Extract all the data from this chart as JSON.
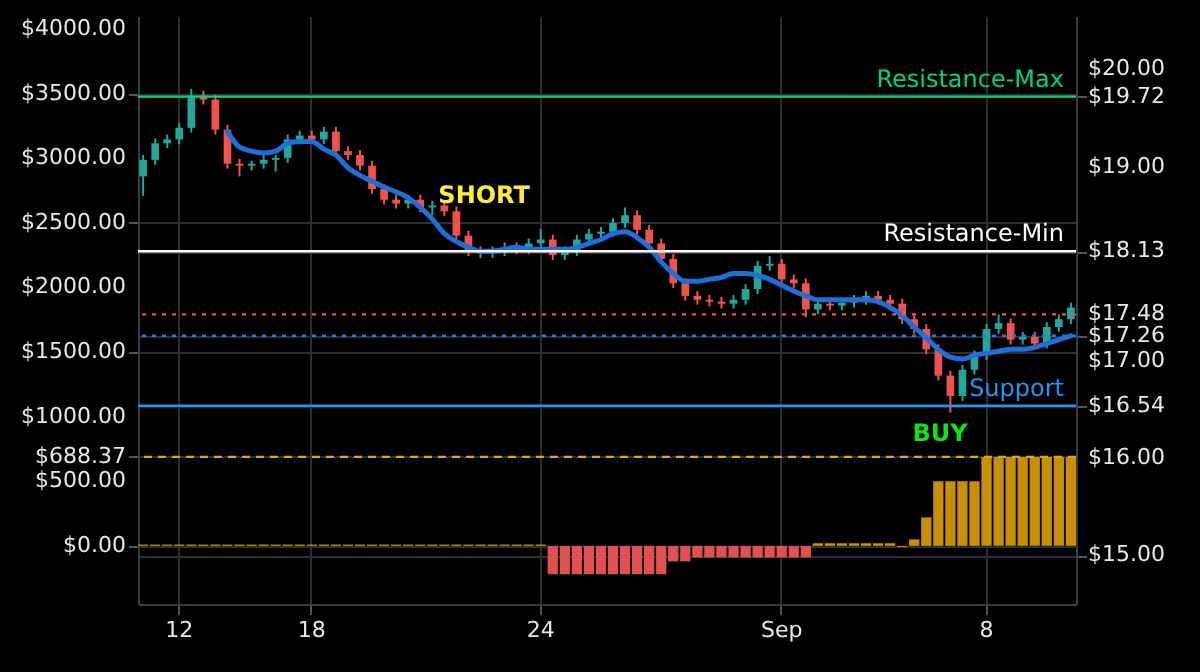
{
  "chart_data": {
    "type": "candlestick",
    "categories": [
      null,
      null,
      null,
      "12",
      null,
      null,
      null,
      null,
      null,
      null,
      null,
      null,
      null,
      null,
      "18",
      null,
      null,
      null,
      null,
      null,
      null,
      null,
      null,
      null,
      null,
      null,
      null,
      null,
      null,
      null,
      null,
      null,
      null,
      "24",
      null,
      null,
      null,
      null,
      null,
      null,
      null,
      null,
      null,
      null,
      null,
      null,
      null,
      null,
      null,
      null,
      null,
      null,
      null,
      "Sep",
      null,
      null,
      null,
      null,
      null,
      null,
      null,
      null,
      null,
      null,
      null,
      null,
      null,
      null,
      null,
      null,
      "8",
      null,
      null,
      null,
      null,
      null,
      null,
      null
    ],
    "series": [
      {
        "ohlc": [
          [
            18.9,
            19.12,
            18.7,
            19.07
          ],
          [
            19.07,
            19.29,
            19.02,
            19.24
          ],
          [
            19.24,
            19.33,
            19.19,
            19.28
          ],
          [
            19.28,
            19.45,
            19.23,
            19.4
          ],
          [
            19.4,
            19.8,
            19.35,
            19.73
          ],
          [
            19.73,
            19.78,
            19.64,
            19.69
          ],
          [
            19.69,
            19.74,
            19.33,
            19.38
          ],
          [
            19.38,
            19.43,
            18.98,
            19.03
          ],
          [
            19.03,
            19.08,
            18.9,
            19.01
          ],
          [
            19.01,
            19.06,
            18.96,
            19.03
          ],
          [
            19.03,
            19.12,
            18.98,
            19.07
          ],
          [
            19.07,
            19.12,
            18.95,
            19.09
          ],
          [
            19.09,
            19.33,
            19.04,
            19.28
          ],
          [
            19.28,
            19.37,
            19.23,
            19.32
          ],
          [
            19.32,
            19.37,
            19.23,
            19.28
          ],
          [
            19.28,
            19.41,
            19.23,
            19.36
          ],
          [
            19.36,
            19.41,
            19.11,
            19.16
          ],
          [
            19.16,
            19.21,
            19.07,
            19.12
          ],
          [
            19.12,
            19.17,
            18.96,
            19.01
          ],
          [
            19.01,
            19.06,
            18.72,
            18.77
          ],
          [
            18.77,
            18.82,
            18.61,
            18.66
          ],
          [
            18.66,
            18.71,
            18.57,
            18.62
          ],
          [
            18.62,
            18.71,
            18.57,
            18.66
          ],
          [
            18.66,
            18.71,
            18.53,
            18.58
          ],
          [
            18.58,
            18.65,
            18.5,
            18.6
          ],
          [
            18.6,
            18.65,
            18.49,
            18.54
          ],
          [
            18.54,
            18.59,
            18.24,
            18.29
          ],
          [
            18.29,
            18.34,
            18.08,
            18.13
          ],
          [
            18.13,
            18.18,
            18.06,
            18.11
          ],
          [
            18.11,
            18.18,
            18.06,
            18.13
          ],
          [
            18.13,
            18.22,
            18.08,
            18.17
          ],
          [
            18.17,
            18.22,
            18.1,
            18.15
          ],
          [
            18.15,
            18.26,
            18.1,
            18.21
          ],
          [
            18.21,
            18.36,
            18.16,
            18.25
          ],
          [
            18.25,
            18.3,
            18.04,
            18.09
          ],
          [
            18.09,
            18.18,
            18.04,
            18.13
          ],
          [
            18.13,
            18.3,
            18.08,
            18.25
          ],
          [
            18.25,
            18.36,
            18.2,
            18.31
          ],
          [
            18.31,
            18.38,
            18.26,
            18.33
          ],
          [
            18.33,
            18.47,
            18.28,
            18.42
          ],
          [
            18.42,
            18.58,
            18.37,
            18.5
          ],
          [
            18.5,
            18.55,
            18.3,
            18.35
          ],
          [
            18.35,
            18.4,
            18.16,
            18.21
          ],
          [
            18.21,
            18.26,
            18.0,
            18.05
          ],
          [
            18.05,
            18.1,
            17.75,
            17.8
          ],
          [
            17.8,
            17.85,
            17.62,
            17.67
          ],
          [
            17.67,
            17.72,
            17.58,
            17.63
          ],
          [
            17.63,
            17.68,
            17.56,
            17.61
          ],
          [
            17.61,
            17.66,
            17.54,
            17.59
          ],
          [
            17.59,
            17.68,
            17.54,
            17.63
          ],
          [
            17.63,
            17.79,
            17.58,
            17.74
          ],
          [
            17.74,
            18.03,
            17.69,
            17.98
          ],
          [
            17.98,
            18.08,
            17.93,
            18.0
          ],
          [
            18.0,
            18.05,
            17.79,
            17.84
          ],
          [
            17.84,
            17.89,
            17.75,
            17.8
          ],
          [
            17.8,
            17.85,
            17.45,
            17.53
          ],
          [
            17.53,
            17.64,
            17.48,
            17.59
          ],
          [
            17.59,
            17.64,
            17.52,
            17.57
          ],
          [
            17.57,
            17.65,
            17.52,
            17.6
          ],
          [
            17.6,
            17.68,
            17.55,
            17.63
          ],
          [
            17.63,
            17.72,
            17.58,
            17.67
          ],
          [
            17.67,
            17.72,
            17.58,
            17.63
          ],
          [
            17.63,
            17.68,
            17.54,
            17.59
          ],
          [
            17.59,
            17.64,
            17.38,
            17.43
          ],
          [
            17.43,
            17.48,
            17.28,
            17.33
          ],
          [
            17.33,
            17.38,
            17.07,
            17.12
          ],
          [
            17.12,
            17.17,
            16.8,
            16.85
          ],
          [
            16.85,
            16.9,
            16.47,
            16.64
          ],
          [
            16.64,
            16.96,
            16.59,
            16.91
          ],
          [
            16.91,
            17.11,
            16.86,
            17.06
          ],
          [
            17.06,
            17.38,
            17.01,
            17.33
          ],
          [
            17.33,
            17.48,
            17.28,
            17.39
          ],
          [
            17.39,
            17.44,
            17.17,
            17.22
          ],
          [
            17.22,
            17.3,
            17.17,
            17.25
          ],
          [
            17.25,
            17.3,
            17.13,
            17.18
          ],
          [
            17.18,
            17.4,
            17.13,
            17.35
          ],
          [
            17.35,
            17.48,
            17.3,
            17.43
          ],
          [
            17.43,
            17.6,
            17.38,
            17.55
          ]
        ],
        "colors": [
          "#26a69a",
          "#26a69a",
          "#26a69a",
          "#26a69a",
          "#26a69a",
          "#ef5350",
          "#ef5350",
          "#ef5350",
          "#ef5350",
          "#26a69a",
          "#26a69a",
          "#26a69a",
          "#26a69a",
          "#26a69a",
          "#ef5350",
          "#26a69a",
          "#ef5350",
          "#ef5350",
          "#ef5350",
          "#ef5350",
          "#ef5350",
          "#ef5350",
          "#26a69a",
          "#ef5350",
          "#26a69a",
          "#ef5350",
          "#ef5350",
          "#ef5350",
          "#ef5350",
          "#26a69a",
          "#26a69a",
          "#ef5350",
          "#26a69a",
          "#26a69a",
          "#ef5350",
          "#26a69a",
          "#26a69a",
          "#26a69a",
          "#26a69a",
          "#26a69a",
          "#26a69a",
          "#ef5350",
          "#ef5350",
          "#ef5350",
          "#ef5350",
          "#ef5350",
          "#ef5350",
          "#ef5350",
          "#ef5350",
          "#26a69a",
          "#26a69a",
          "#26a69a",
          "#26a69a",
          "#ef5350",
          "#ef5350",
          "#ef5350",
          "#26a69a",
          "#ef5350",
          "#26a69a",
          "#26a69a",
          "#26a69a",
          "#ef5350",
          "#ef5350",
          "#ef5350",
          "#ef5350",
          "#ef5350",
          "#ef5350",
          "#ef5350",
          "#26a69a",
          "#26a69a",
          "#26a69a",
          "#26a69a",
          "#ef5350",
          "#26a69a",
          "#ef5350",
          "#26a69a",
          "#26a69a",
          "#26a69a"
        ]
      },
      {
        "type": "line",
        "color": "#1e6fd9",
        "values": [
          null,
          null,
          null,
          null,
          null,
          null,
          null,
          19.36,
          19.2,
          19.16,
          19.14,
          19.16,
          19.24,
          19.26,
          19.26,
          19.18,
          19.12,
          18.99,
          18.91,
          18.85,
          18.79,
          18.74,
          18.68,
          18.58,
          18.46,
          18.31,
          18.23,
          18.17,
          18.13,
          18.13,
          18.15,
          18.17,
          18.15,
          18.15,
          18.15,
          18.15,
          18.17,
          18.21,
          18.25,
          18.31,
          18.33,
          18.27,
          18.17,
          18.02,
          17.9,
          17.82,
          17.82,
          17.84,
          17.86,
          17.9,
          17.9,
          17.88,
          17.84,
          17.78,
          17.72,
          17.67,
          17.63,
          17.63,
          17.63,
          17.63,
          17.63,
          17.61,
          17.55,
          17.47,
          17.35,
          17.24,
          17.12,
          17.04,
          17.02,
          17.06,
          17.08,
          17.1,
          17.12,
          17.12,
          17.14,
          17.18,
          17.22,
          17.26
        ]
      },
      {
        "type": "bar",
        "axis": "y2",
        "values": [
          10,
          10,
          10,
          10,
          10,
          10,
          10,
          10,
          10,
          10,
          10,
          10,
          10,
          10,
          10,
          10,
          10,
          10,
          10,
          10,
          10,
          10,
          10,
          10,
          10,
          10,
          10,
          10,
          10,
          10,
          10,
          10,
          10,
          10,
          -220,
          -220,
          -220,
          -220,
          -220,
          -220,
          -220,
          -220,
          -220,
          -220,
          -120,
          -120,
          -90,
          -90,
          -90,
          -90,
          -90,
          -90,
          -90,
          -90,
          -90,
          -90,
          20,
          20,
          20,
          20,
          20,
          20,
          20,
          -10,
          50,
          220,
          500,
          500,
          500,
          500,
          688.37,
          688.37,
          688.37,
          688.37,
          688.37,
          688.37,
          688.37,
          688.37
        ],
        "colors": [
          "#c8900a",
          "#c8900a",
          "#c8900a",
          "#c8900a",
          "#c8900a",
          "#c8900a",
          "#c8900a",
          "#c8900a",
          "#c8900a",
          "#c8900a",
          "#c8900a",
          "#c8900a",
          "#c8900a",
          "#c8900a",
          "#c8900a",
          "#c8900a",
          "#c8900a",
          "#c8900a",
          "#c8900a",
          "#c8900a",
          "#c8900a",
          "#c8900a",
          "#c8900a",
          "#c8900a",
          "#c8900a",
          "#c8900a",
          "#c8900a",
          "#c8900a",
          "#c8900a",
          "#c8900a",
          "#c8900a",
          "#c8900a",
          "#c8900a",
          "#c8900a",
          "#e05252",
          "#e05252",
          "#e05252",
          "#e05252",
          "#e05252",
          "#e05252",
          "#e05252",
          "#e05252",
          "#e05252",
          "#e05252",
          "#e05252",
          "#e05252",
          "#e05252",
          "#e05252",
          "#e05252",
          "#e05252",
          "#e05252",
          "#e05252",
          "#e05252",
          "#e05252",
          "#e05252",
          "#e05252",
          "#c8900a",
          "#c8900a",
          "#c8900a",
          "#c8900a",
          "#c8900a",
          "#c8900a",
          "#c8900a",
          "#e05252",
          "#c8900a",
          "#c8900a",
          "#c8900a",
          "#c8900a",
          "#c8900a",
          "#c8900a",
          "#c8900a",
          "#c8900a",
          "#c8900a",
          "#c8900a",
          "#c8900a",
          "#c8900a",
          "#c8900a",
          "#c8900a"
        ]
      }
    ],
    "ylim": [
      14.5,
      20.55
    ],
    "yticks": [
      {
        "value": 15,
        "label": "$15.00"
      },
      {
        "value": 16,
        "label": "$16.00"
      },
      {
        "value": 16.54,
        "label": "$16.54"
      },
      {
        "value": 17,
        "label": "$17.00"
      },
      {
        "value": 17.26,
        "label": "$17.26"
      },
      {
        "value": 17.48,
        "label": "$17.48"
      },
      {
        "value": 18.13,
        "label": "$18.13"
      },
      {
        "value": 19,
        "label": "$19.00"
      },
      {
        "value": 19.72,
        "label": "$19.72"
      },
      {
        "value": 20,
        "label": "$20.00"
      }
    ],
    "y2lim": [
      -450,
      4100
    ],
    "y2ticks": [
      {
        "value": 0,
        "label": "$0.00"
      },
      {
        "value": 500,
        "label": "$500.00"
      },
      {
        "value": 688.37,
        "label": "$688.37"
      },
      {
        "value": 1000,
        "label": "$1000.00"
      },
      {
        "value": 1500,
        "label": "$1500.00"
      },
      {
        "value": 2000,
        "label": "$2000.00"
      },
      {
        "value": 2500,
        "label": "$2500.00"
      },
      {
        "value": 3000,
        "label": "$3000.00"
      },
      {
        "value": 3500,
        "label": "$3500.00"
      },
      {
        "value": 4000,
        "label": "$4000.00"
      }
    ],
    "ref_lines": [
      {
        "axis": "y",
        "value": 19.72,
        "label": "Resistance-Max",
        "color": "#00d47e"
      },
      {
        "axis": "y",
        "value": 18.13,
        "label": "Resistance-Min",
        "color": "#ffffff"
      },
      {
        "axis": "y",
        "value": 17.48,
        "color": "#ff4d4d",
        "line_style": "dotted"
      },
      {
        "axis": "y",
        "value": 17.26,
        "color": "#1e7be0",
        "line_style": "dotted"
      },
      {
        "axis": "y",
        "value": 16.54,
        "label": "Support",
        "color": "#2196f3"
      },
      {
        "axis": "y2",
        "value": 688.37,
        "color": "#e0a800",
        "line_style": "dashed"
      }
    ],
    "annotations": [
      "SHORT",
      "BUY"
    ],
    "grid": true
  }
}
